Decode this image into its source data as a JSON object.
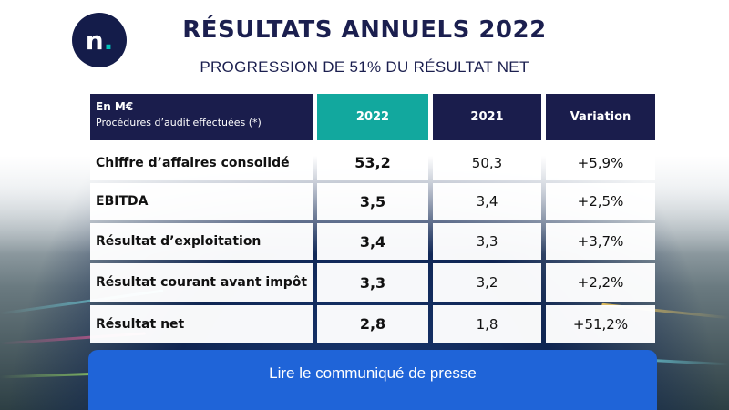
{
  "logo": {
    "letter": "n",
    "dot": "."
  },
  "title": "RÉSULTATS ANNUELS 2022",
  "subtitle": "PROGRESSION DE 51% DU RÉSULTAT NET",
  "table": {
    "header": {
      "unit": "En M€",
      "note": "Procédures d’audit effectuées (*)",
      "col_2022": "2022",
      "col_2021": "2021",
      "col_variation": "Variation"
    },
    "rows": [
      {
        "label": "Chiffre d’affaires consolidé",
        "v2022": "53,2",
        "v2021": "50,3",
        "variation": "+5,9%"
      },
      {
        "label": "EBITDA",
        "v2022": "3,5",
        "v2021": "3,4",
        "variation": "+2,5%"
      },
      {
        "label": "Résultat d’exploitation",
        "v2022": "3,4",
        "v2021": "3,3",
        "variation": "+3,7%"
      },
      {
        "label": "Résultat courant avant impôt",
        "v2022": "3,3",
        "v2021": "3,2",
        "variation": "+2,2%"
      },
      {
        "label": "Résultat net",
        "v2022": "2,8",
        "v2021": "1,8",
        "variation": "+51,2%"
      }
    ]
  },
  "cta": {
    "label": "Lire le communiqué de presse"
  },
  "colors": {
    "navy": "#1a1d4c",
    "teal": "#12a89e",
    "cta_blue": "#1f64d8"
  }
}
